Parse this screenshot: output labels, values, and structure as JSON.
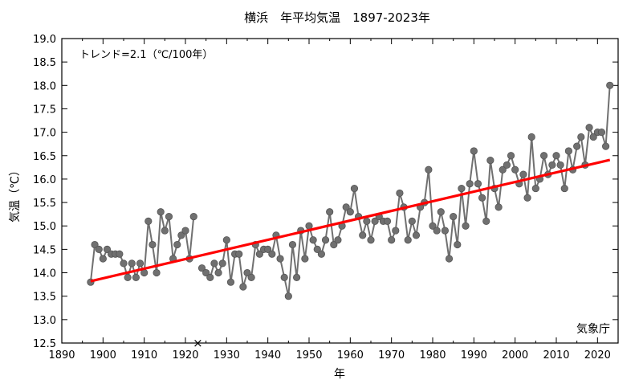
{
  "chart_data": {
    "type": "line",
    "title": "横浜　年平均気温　1897-2023年",
    "xlabel": "年",
    "ylabel": "気温（℃）",
    "trend_label": "トレンド=2.1（℃/100年）",
    "source": "気象庁",
    "xlim": [
      1890,
      2025
    ],
    "ylim": [
      12.5,
      19.0
    ],
    "x_ticks": [
      1890,
      1900,
      1910,
      1920,
      1930,
      1940,
      1950,
      1960,
      1970,
      1980,
      1990,
      2000,
      2010,
      2020
    ],
    "y_ticks": [
      "12.5",
      "13.0",
      "13.5",
      "14.0",
      "14.5",
      "15.0",
      "15.5",
      "16.0",
      "16.5",
      "17.0",
      "17.5",
      "18.0",
      "18.5",
      "19.0"
    ],
    "grid": false,
    "series": [
      {
        "color": "#707070",
        "x": [
          1897,
          1898,
          1899,
          1900,
          1901,
          1902,
          1903,
          1904,
          1905,
          1906,
          1907,
          1908,
          1909,
          1910,
          1911,
          1912,
          1913,
          1914,
          1915,
          1916,
          1917,
          1918,
          1919,
          1920,
          1921,
          1922,
          1924,
          1925,
          1926,
          1927,
          1928,
          1929,
          1930,
          1931,
          1932,
          1933,
          1934,
          1935,
          1936,
          1937,
          1938,
          1939,
          1940,
          1941,
          1942,
          1943,
          1944,
          1945,
          1946,
          1947,
          1948,
          1949,
          1950,
          1951,
          1952,
          1953,
          1954,
          1955,
          1956,
          1957,
          1958,
          1959,
          1960,
          1961,
          1962,
          1963,
          1964,
          1965,
          1966,
          1967,
          1968,
          1969,
          1970,
          1971,
          1972,
          1973,
          1974,
          1975,
          1976,
          1977,
          1978,
          1979,
          1980,
          1981,
          1982,
          1983,
          1984,
          1985,
          1986,
          1987,
          1988,
          1989,
          1990,
          1991,
          1992,
          1993,
          1994,
          1995,
          1996,
          1997,
          1998,
          1999,
          2000,
          2001,
          2002,
          2003,
          2004,
          2005,
          2006,
          2007,
          2008,
          2009,
          2010,
          2011,
          2012,
          2013,
          2014,
          2015,
          2016,
          2017,
          2018,
          2019,
          2020,
          2021,
          2022,
          2023
        ],
        "values": [
          13.8,
          14.6,
          14.5,
          14.3,
          14.5,
          14.4,
          14.4,
          14.4,
          14.2,
          13.9,
          14.2,
          13.9,
          14.2,
          14.0,
          15.1,
          14.6,
          14.0,
          15.3,
          14.9,
          15.2,
          14.3,
          14.6,
          14.8,
          14.9,
          14.3,
          15.2,
          14.1,
          14.0,
          13.9,
          14.2,
          14.0,
          14.2,
          14.7,
          13.8,
          14.4,
          14.4,
          13.7,
          14.0,
          13.9,
          14.6,
          14.4,
          14.5,
          14.5,
          14.4,
          14.8,
          14.3,
          13.9,
          13.5,
          14.6,
          13.9,
          14.9,
          14.3,
          15.0,
          14.7,
          14.5,
          14.4,
          14.7,
          15.3,
          14.6,
          14.7,
          15.0,
          15.4,
          15.3,
          15.8,
          15.2,
          14.8,
          15.1,
          14.7,
          15.1,
          15.2,
          15.1,
          15.1,
          14.7,
          14.9,
          15.7,
          15.4,
          14.7,
          15.1,
          14.8,
          15.4,
          15.5,
          16.2,
          15.0,
          14.9,
          15.3,
          14.9,
          14.3,
          15.2,
          14.6,
          15.8,
          15.0,
          15.9,
          16.6,
          15.9,
          15.6,
          15.1,
          16.4,
          15.8,
          15.4,
          16.2,
          16.3,
          16.5,
          16.2,
          15.9,
          16.1,
          15.6,
          16.9,
          15.8,
          16.0,
          16.5,
          16.1,
          16.3,
          16.5,
          16.3,
          15.8,
          16.6,
          16.2,
          16.7,
          16.9,
          16.3,
          17.1,
          16.9,
          17.0,
          17.0,
          16.7,
          18.0
        ]
      }
    ],
    "trend": {
      "color": "#ff0000",
      "x": [
        1897,
        2023
      ],
      "values": [
        13.82,
        16.41
      ]
    },
    "missing_marker": {
      "x": 1923,
      "y": 12.5,
      "symbol": "×"
    }
  }
}
